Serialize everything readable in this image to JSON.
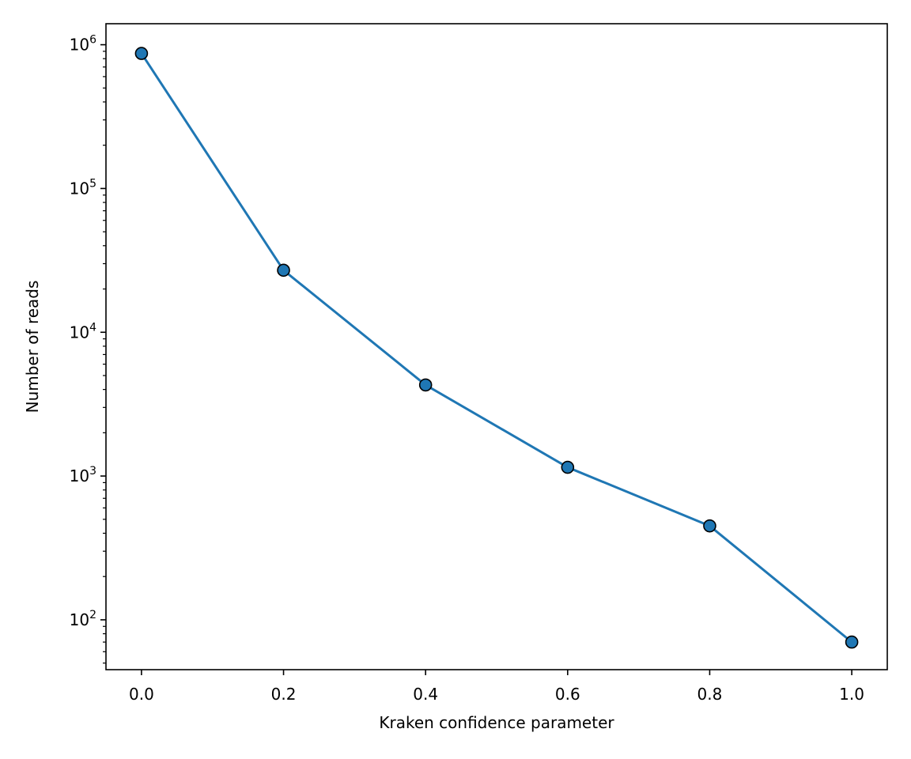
{
  "chart_data": {
    "type": "line",
    "title": "",
    "xlabel": "Kraken confidence parameter",
    "ylabel": "Number of reads",
    "x": [
      0.0,
      0.2,
      0.4,
      0.6,
      0.8,
      1.0
    ],
    "series": [
      {
        "values": [
          870000,
          27000,
          4300,
          1150,
          450,
          70
        ],
        "color": "#1f77b4"
      }
    ],
    "xlim": [
      -0.05,
      1.05
    ],
    "ylim": [
      45,
      1400000
    ],
    "yscale": "log",
    "xticks": [
      "0.0",
      "0.2",
      "0.4",
      "0.6",
      "0.8",
      "1.0"
    ],
    "yticks": [
      {
        "value": 100,
        "base": "10",
        "exp": "2"
      },
      {
        "value": 1000,
        "base": "10",
        "exp": "3"
      },
      {
        "value": 10000,
        "base": "10",
        "exp": "4"
      },
      {
        "value": 100000,
        "base": "10",
        "exp": "5"
      },
      {
        "value": 1000000,
        "base": "10",
        "exp": "6"
      }
    ],
    "grid": false,
    "marker": "circle"
  }
}
